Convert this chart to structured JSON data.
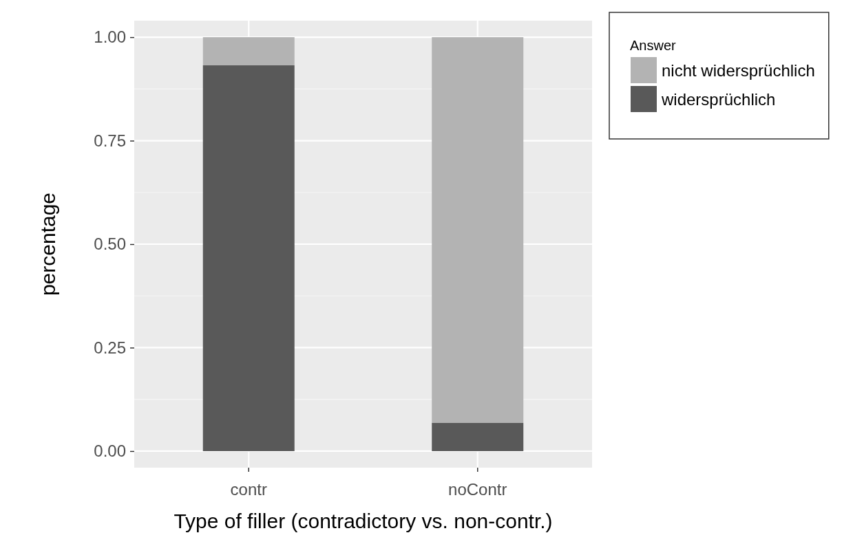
{
  "chart_data": {
    "type": "bar",
    "xlabel": "Type of filler (contradictory vs. non-contr.)",
    "ylabel": "percentage",
    "legend_title": "Answer",
    "categories": [
      "contr",
      "noContr"
    ],
    "stacked": true,
    "series": [
      {
        "name": "widersprüchlich",
        "color": "#595959",
        "values": [
          0.932,
          0.068
        ]
      },
      {
        "name": "nicht widersprüchlich",
        "color": "#b3b3b3",
        "values": [
          0.068,
          0.932
        ]
      }
    ],
    "ylim": [
      -0.04,
      1.04
    ],
    "yticks": [
      {
        "value": 0,
        "label": "0.00"
      },
      {
        "value": 0.25,
        "label": "0.25"
      },
      {
        "value": 0.5,
        "label": "0.50"
      },
      {
        "value": 0.75,
        "label": "0.75"
      },
      {
        "value": 1,
        "label": "1.00"
      }
    ],
    "grid": true,
    "legend": "top right"
  }
}
